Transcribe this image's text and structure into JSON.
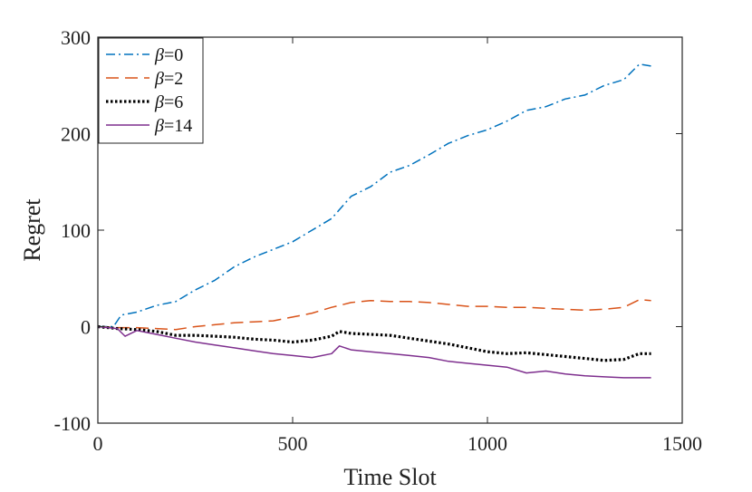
{
  "chart_data": {
    "type": "line",
    "title": "",
    "xlabel": "Time Slot",
    "ylabel": "Regret",
    "xlim": [
      0,
      1500
    ],
    "ylim": [
      -100,
      300
    ],
    "xticks": [
      0,
      500,
      1000,
      1500
    ],
    "xtick_labels": [
      "0",
      "500",
      "1000",
      "1500"
    ],
    "yticks": [
      -100,
      0,
      100,
      200,
      300
    ],
    "ytick_labels": [
      "-100",
      "0",
      "100",
      "200",
      "300"
    ],
    "grid": false,
    "legend_position": "top-left",
    "series": [
      {
        "name": "β=0",
        "symbol": "β",
        "suffix": "=0",
        "color": "#0072BD",
        "dash": "dashdot",
        "x": [
          0,
          40,
          60,
          100,
          150,
          200,
          250,
          300,
          350,
          400,
          450,
          500,
          550,
          600,
          650,
          700,
          750,
          800,
          850,
          900,
          950,
          1000,
          1050,
          1100,
          1150,
          1200,
          1250,
          1300,
          1350,
          1390,
          1420
        ],
        "y": [
          0,
          0,
          12,
          15,
          22,
          26,
          38,
          48,
          62,
          72,
          80,
          88,
          100,
          112,
          135,
          145,
          160,
          167,
          178,
          190,
          198,
          204,
          213,
          224,
          228,
          236,
          240,
          250,
          256,
          272,
          270
        ]
      },
      {
        "name": "β=2",
        "symbol": "β",
        "suffix": "=2",
        "color": "#D95319",
        "dash": "dashed",
        "x": [
          0,
          50,
          100,
          150,
          200,
          250,
          300,
          350,
          400,
          450,
          500,
          550,
          600,
          650,
          700,
          750,
          800,
          850,
          900,
          950,
          1000,
          1050,
          1100,
          1150,
          1200,
          1250,
          1300,
          1350,
          1390,
          1420
        ],
        "y": [
          0,
          -1,
          -1,
          -2,
          -3,
          0,
          2,
          4,
          5,
          6,
          10,
          14,
          20,
          25,
          27,
          26,
          26,
          25,
          23,
          21,
          21,
          20,
          20,
          19,
          18,
          17,
          18,
          20,
          28,
          27
        ]
      },
      {
        "name": "β=6",
        "symbol": "β",
        "suffix": "=6",
        "color": "#000000",
        "dash": "dotted",
        "x": [
          0,
          50,
          100,
          150,
          200,
          250,
          300,
          350,
          400,
          450,
          500,
          550,
          600,
          620,
          650,
          700,
          750,
          800,
          850,
          900,
          950,
          1000,
          1050,
          1100,
          1150,
          1200,
          1250,
          1300,
          1350,
          1390,
          1420
        ],
        "y": [
          0,
          -2,
          -3,
          -5,
          -9,
          -9,
          -10,
          -11,
          -13,
          -14,
          -16,
          -14,
          -10,
          -5,
          -7,
          -8,
          -9,
          -12,
          -15,
          -18,
          -22,
          -26,
          -28,
          -27,
          -29,
          -31,
          -33,
          -35,
          -34,
          -28,
          -28
        ]
      },
      {
        "name": "β=14",
        "symbol": "β",
        "suffix": "=14",
        "color": "#7E2F8E",
        "dash": "solid",
        "x": [
          0,
          50,
          70,
          100,
          150,
          200,
          250,
          300,
          350,
          400,
          450,
          500,
          550,
          600,
          620,
          650,
          700,
          750,
          800,
          850,
          900,
          950,
          1000,
          1050,
          1100,
          1150,
          1200,
          1250,
          1300,
          1350,
          1390,
          1420
        ],
        "y": [
          0,
          -2,
          -10,
          -4,
          -8,
          -12,
          -16,
          -19,
          -22,
          -25,
          -28,
          -30,
          -32,
          -28,
          -20,
          -24,
          -26,
          -28,
          -30,
          -32,
          -36,
          -38,
          -40,
          -42,
          -48,
          -46,
          -49,
          -51,
          -52,
          -53,
          -53,
          -53
        ]
      }
    ]
  }
}
